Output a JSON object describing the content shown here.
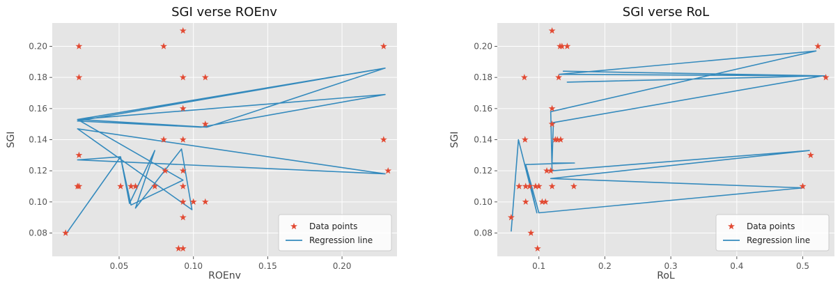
{
  "colors": {
    "background": "#e5e5e5",
    "grid": "#ffffff",
    "points": "#e24a33",
    "line": "#348abd"
  },
  "chart_data": [
    {
      "type": "scatter",
      "title": "SGI verse ROEnv",
      "xlabel": "ROEnv",
      "ylabel": "SGI",
      "xlim": [
        0.005,
        0.237
      ],
      "ylim": [
        0.065,
        0.215
      ],
      "xticks": [
        {
          "value": 0.05,
          "label": "0.05"
        },
        {
          "value": 0.1,
          "label": "0.10"
        },
        {
          "value": 0.15,
          "label": "0.15"
        },
        {
          "value": 0.2,
          "label": "0.20"
        }
      ],
      "yticks": [
        {
          "value": 0.08,
          "label": "0.08"
        },
        {
          "value": 0.1,
          "label": "0.10"
        },
        {
          "value": 0.12,
          "label": "0.12"
        },
        {
          "value": 0.14,
          "label": "0.14"
        },
        {
          "value": 0.16,
          "label": "0.16"
        },
        {
          "value": 0.18,
          "label": "0.18"
        },
        {
          "value": 0.2,
          "label": "0.20"
        }
      ],
      "legend": {
        "position": "bottom-right",
        "items": [
          {
            "label": "Data points",
            "kind": "marker"
          },
          {
            "label": "Regression line",
            "kind": "line"
          }
        ]
      },
      "grid": true,
      "points": [
        [
          0.014,
          0.08
        ],
        [
          0.022,
          0.11
        ],
        [
          0.023,
          0.11
        ],
        [
          0.023,
          0.2
        ],
        [
          0.023,
          0.18
        ],
        [
          0.023,
          0.13
        ],
        [
          0.051,
          0.11
        ],
        [
          0.058,
          0.11
        ],
        [
          0.061,
          0.11
        ],
        [
          0.074,
          0.11
        ],
        [
          0.08,
          0.2
        ],
        [
          0.08,
          0.14
        ],
        [
          0.081,
          0.12
        ],
        [
          0.09,
          0.07
        ],
        [
          0.093,
          0.07
        ],
        [
          0.093,
          0.21
        ],
        [
          0.093,
          0.18
        ],
        [
          0.093,
          0.16
        ],
        [
          0.093,
          0.14
        ],
        [
          0.093,
          0.12
        ],
        [
          0.093,
          0.11
        ],
        [
          0.093,
          0.1
        ],
        [
          0.093,
          0.09
        ],
        [
          0.1,
          0.1
        ],
        [
          0.108,
          0.18
        ],
        [
          0.108,
          0.15
        ],
        [
          0.108,
          0.1
        ],
        [
          0.228,
          0.2
        ],
        [
          0.228,
          0.14
        ],
        [
          0.231,
          0.12
        ]
      ],
      "line": [
        [
          0.014,
          0.079
        ],
        [
          0.051,
          0.129
        ],
        [
          0.057,
          0.099
        ],
        [
          0.074,
          0.133
        ],
        [
          0.061,
          0.096
        ],
        [
          0.092,
          0.134
        ],
        [
          0.099,
          0.095
        ],
        [
          0.022,
          0.147
        ],
        [
          0.229,
          0.118
        ],
        [
          0.022,
          0.127
        ],
        [
          0.051,
          0.129
        ],
        [
          0.058,
          0.098
        ],
        [
          0.093,
          0.114
        ],
        [
          0.022,
          0.153
        ],
        [
          0.229,
          0.186
        ],
        [
          0.022,
          0.152
        ],
        [
          0.105,
          0.148
        ],
        [
          0.229,
          0.169
        ],
        [
          0.022,
          0.153
        ],
        [
          0.109,
          0.148
        ],
        [
          0.229,
          0.186
        ]
      ]
    },
    {
      "type": "scatter",
      "title": "SGI verse RoL",
      "xlabel": "RoL",
      "ylabel": "SGI",
      "xlim": [
        0.037,
        0.548
      ],
      "ylim": [
        0.065,
        0.215
      ],
      "xticks": [
        {
          "value": 0.1,
          "label": "0.1"
        },
        {
          "value": 0.2,
          "label": "0.2"
        },
        {
          "value": 0.3,
          "label": "0.3"
        },
        {
          "value": 0.4,
          "label": "0.4"
        },
        {
          "value": 0.5,
          "label": "0.5"
        }
      ],
      "yticks": [
        {
          "value": 0.08,
          "label": "0.08"
        },
        {
          "value": 0.1,
          "label": "0.10"
        },
        {
          "value": 0.12,
          "label": "0.12"
        },
        {
          "value": 0.14,
          "label": "0.14"
        },
        {
          "value": 0.16,
          "label": "0.16"
        },
        {
          "value": 0.18,
          "label": "0.18"
        },
        {
          "value": 0.2,
          "label": "0.20"
        }
      ],
      "legend": {
        "position": "bottom-right",
        "items": [
          {
            "label": "Data points",
            "kind": "marker"
          },
          {
            "label": "Regression line",
            "kind": "line"
          }
        ]
      },
      "grid": true,
      "points": [
        [
          0.058,
          0.09
        ],
        [
          0.07,
          0.11
        ],
        [
          0.078,
          0.18
        ],
        [
          0.079,
          0.14
        ],
        [
          0.08,
          0.11
        ],
        [
          0.08,
          0.1
        ],
        [
          0.086,
          0.11
        ],
        [
          0.088,
          0.08
        ],
        [
          0.095,
          0.11
        ],
        [
          0.098,
          0.07
        ],
        [
          0.1,
          0.11
        ],
        [
          0.105,
          0.1
        ],
        [
          0.11,
          0.1
        ],
        [
          0.112,
          0.12
        ],
        [
          0.118,
          0.12
        ],
        [
          0.12,
          0.21
        ],
        [
          0.12,
          0.16
        ],
        [
          0.12,
          0.15
        ],
        [
          0.12,
          0.11
        ],
        [
          0.125,
          0.14
        ],
        [
          0.128,
          0.14
        ],
        [
          0.13,
          0.18
        ],
        [
          0.132,
          0.2
        ],
        [
          0.135,
          0.2
        ],
        [
          0.133,
          0.14
        ],
        [
          0.143,
          0.2
        ],
        [
          0.153,
          0.11
        ],
        [
          0.5,
          0.11
        ],
        [
          0.512,
          0.13
        ],
        [
          0.523,
          0.2
        ],
        [
          0.535,
          0.18
        ]
      ],
      "line": [
        [
          0.058,
          0.081
        ],
        [
          0.069,
          0.14
        ],
        [
          0.097,
          0.093
        ],
        [
          0.08,
          0.124
        ],
        [
          0.1,
          0.093
        ],
        [
          0.5,
          0.109
        ],
        [
          0.118,
          0.115
        ],
        [
          0.51,
          0.133
        ],
        [
          0.12,
          0.12
        ],
        [
          0.118,
          0.158
        ],
        [
          0.52,
          0.197
        ],
        [
          0.131,
          0.182
        ],
        [
          0.534,
          0.181
        ],
        [
          0.137,
          0.184
        ],
        [
          0.528,
          0.181
        ],
        [
          0.143,
          0.177
        ],
        [
          0.53,
          0.181
        ],
        [
          0.122,
          0.151
        ],
        [
          0.12,
          0.125
        ],
        [
          0.154,
          0.125
        ],
        [
          0.08,
          0.124
        ]
      ]
    }
  ]
}
